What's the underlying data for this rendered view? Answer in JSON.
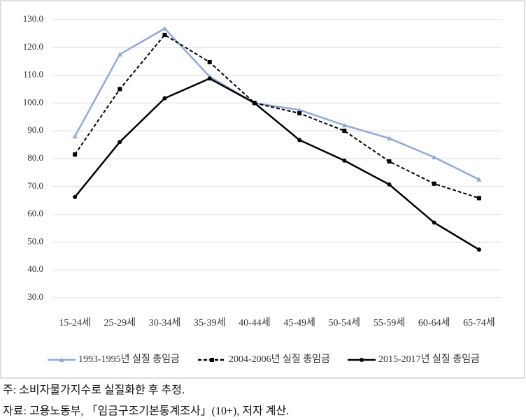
{
  "chart_data": {
    "type": "line",
    "categories": [
      "15-24세",
      "25-29세",
      "30-34세",
      "35-39세",
      "40-44세",
      "45-49세",
      "50-54세",
      "55-59세",
      "60-64세",
      "65-74세"
    ],
    "series": [
      {
        "name": "1993-1995년 실질 총임금",
        "color": "#8faadc",
        "style": "solid",
        "marker": "triangle",
        "values": [
          88.0,
          117.5,
          126.8,
          109.5,
          100.0,
          97.5,
          92.0,
          87.3,
          80.5,
          72.5
        ]
      },
      {
        "name": "2004-2006년 실질 총임금",
        "color": "#000000",
        "style": "dashed",
        "marker": "square",
        "values": [
          81.5,
          105.0,
          124.5,
          114.7,
          100.0,
          96.3,
          90.0,
          79.0,
          71.0,
          65.8
        ]
      },
      {
        "name": "2015-2017년 실질 총임금",
        "color": "#000000",
        "style": "solid",
        "marker": "circle",
        "values": [
          66.2,
          86.0,
          101.7,
          108.8,
          100.0,
          86.7,
          79.3,
          70.7,
          57.0,
          47.3
        ]
      }
    ],
    "ylim": [
      30,
      130
    ],
    "yticks": [
      {
        "value": 30,
        "label": "30.0"
      },
      {
        "value": 40,
        "label": "40.0"
      },
      {
        "value": 50,
        "label": "50.0"
      },
      {
        "value": 60,
        "label": "60.0"
      },
      {
        "value": 70,
        "label": "70.0"
      },
      {
        "value": 80,
        "label": "80.0"
      },
      {
        "value": 90,
        "label": "90.0"
      },
      {
        "value": 100,
        "label": "100.0"
      },
      {
        "value": 110,
        "label": "110.0"
      },
      {
        "value": 120,
        "label": "120.0"
      },
      {
        "value": 130,
        "label": "130.0"
      }
    ],
    "grid": true,
    "legend": "bottom"
  },
  "notes": [
    "주: 소비자물가지수로 실질화한 후 추정.",
    "자료: 고용노동부, 「임금구조기본통계조사」(10+), 저자 계산."
  ]
}
